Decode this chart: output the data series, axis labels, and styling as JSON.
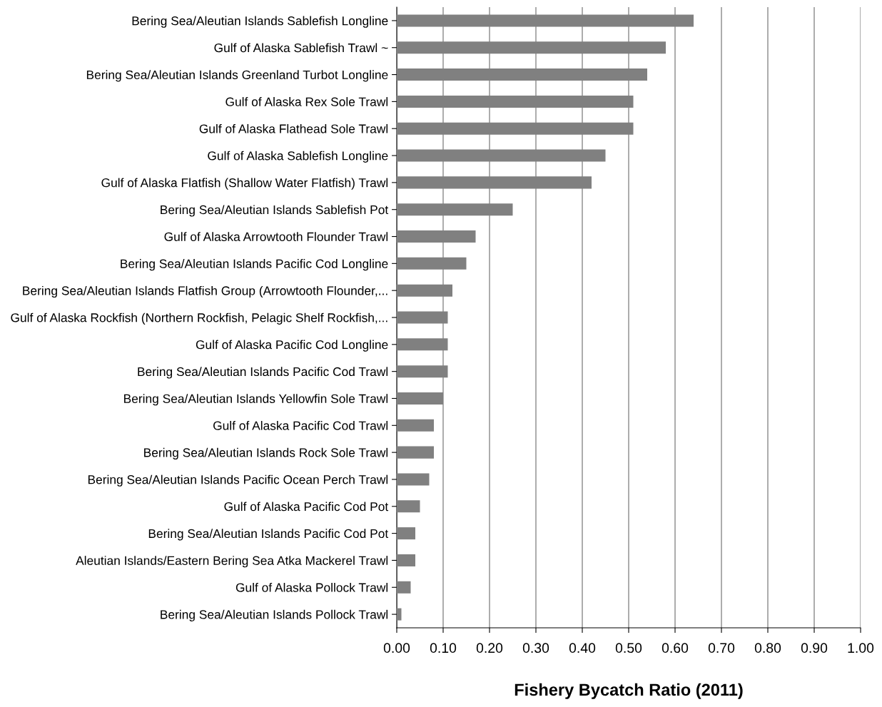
{
  "chart_data": {
    "type": "bar",
    "orientation": "horizontal",
    "xlabel": "Fishery Bycatch Ratio (2011)",
    "categories": [
      "Bering Sea/Aleutian Islands Sablefish Longline",
      "Gulf of Alaska Sablefish Trawl ~",
      "Bering Sea/Aleutian Islands Greenland Turbot Longline",
      "Gulf of Alaska Rex Sole Trawl",
      "Gulf of Alaska Flathead Sole Trawl",
      "Gulf of Alaska Sablefish Longline",
      "Gulf of Alaska Flatfish (Shallow Water Flatfish) Trawl",
      "Bering Sea/Aleutian Islands Sablefish Pot",
      "Gulf of Alaska Arrowtooth Flounder Trawl",
      "Bering Sea/Aleutian Islands Pacific Cod Longline",
      "Bering Sea/Aleutian Islands Flatfish Group (Arrowtooth Flounder,...",
      "Gulf of Alaska Rockfish (Northern Rockfish, Pelagic Shelf Rockfish,...",
      "Gulf of Alaska Pacific Cod Longline",
      "Bering Sea/Aleutian Islands Pacific Cod Trawl",
      "Bering Sea/Aleutian Islands Yellowfin Sole Trawl",
      "Gulf of Alaska Pacific Cod Trawl",
      "Bering Sea/Aleutian Islands Rock Sole Trawl",
      "Bering Sea/Aleutian Islands Pacific Ocean Perch Trawl",
      "Gulf of Alaska Pacific Cod Pot",
      "Bering Sea/Aleutian Islands Pacific Cod Pot",
      "Aleutian Islands/Eastern Bering Sea Atka Mackerel Trawl",
      "Gulf of Alaska Pollock Trawl",
      "Bering Sea/Aleutian Islands Pollock Trawl"
    ],
    "values": [
      0.64,
      0.58,
      0.54,
      0.51,
      0.51,
      0.45,
      0.42,
      0.25,
      0.17,
      0.15,
      0.12,
      0.11,
      0.11,
      0.11,
      0.1,
      0.08,
      0.08,
      0.07,
      0.05,
      0.04,
      0.04,
      0.03,
      0.01
    ],
    "color": "#808080",
    "xlim": [
      0,
      1
    ],
    "xticks": [
      {
        "value": 0,
        "label": "0.00"
      },
      {
        "value": 0.1,
        "label": "0.10"
      },
      {
        "value": 0.2,
        "label": "0.20"
      },
      {
        "value": 0.3,
        "label": "0.30"
      },
      {
        "value": 0.4,
        "label": "0.40"
      },
      {
        "value": 0.5,
        "label": "0.50"
      },
      {
        "value": 0.6,
        "label": "0.60"
      },
      {
        "value": 0.7,
        "label": "0.70"
      },
      {
        "value": 0.8,
        "label": "0.80"
      },
      {
        "value": 0.9,
        "label": "0.90"
      },
      {
        "value": 1,
        "label": "1.00"
      }
    ],
    "grid": "x",
    "legend": false
  }
}
